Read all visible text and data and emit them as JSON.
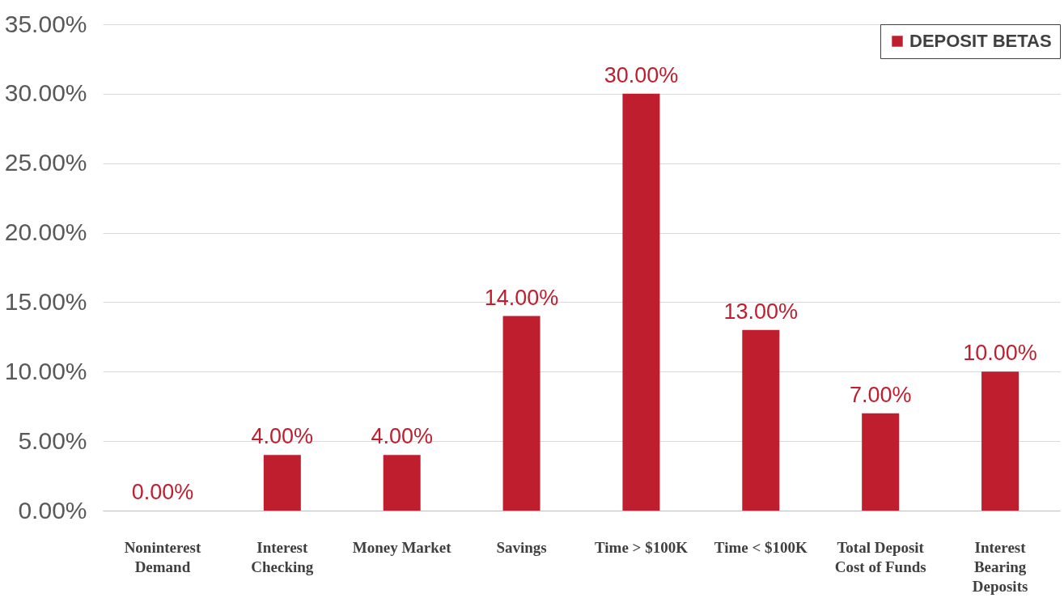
{
  "chart_data": {
    "type": "bar",
    "categories": [
      "Noninterest Demand",
      "Interest Checking",
      "Money Market",
      "Savings",
      "Time > $100K",
      "Time < $100K",
      "Total Deposit Cost of Funds",
      "Interest Bearing Deposits"
    ],
    "series": [
      {
        "name": "DEPOSIT BETAS",
        "color": "#be1e2d",
        "values": [
          0,
          4,
          4,
          14,
          30,
          13,
          7,
          10
        ],
        "value_labels": [
          "0.00%",
          "4.00%",
          "4.00%",
          "14.00%",
          "30.00%",
          "13.00%",
          "7.00%",
          "10.00%"
        ]
      }
    ],
    "ylim": [
      0,
      35
    ],
    "yticks": [
      {
        "value": 0,
        "label": "0.00%"
      },
      {
        "value": 5,
        "label": "5.00%"
      },
      {
        "value": 10,
        "label": "10.00%"
      },
      {
        "value": 15,
        "label": "15.00%"
      },
      {
        "value": 20,
        "label": "20.00%"
      },
      {
        "value": 25,
        "label": "25.00%"
      },
      {
        "value": 30,
        "label": "30.00%"
      },
      {
        "value": 35,
        "label": "35.00%"
      }
    ],
    "grid": "y",
    "legend": "top right"
  }
}
